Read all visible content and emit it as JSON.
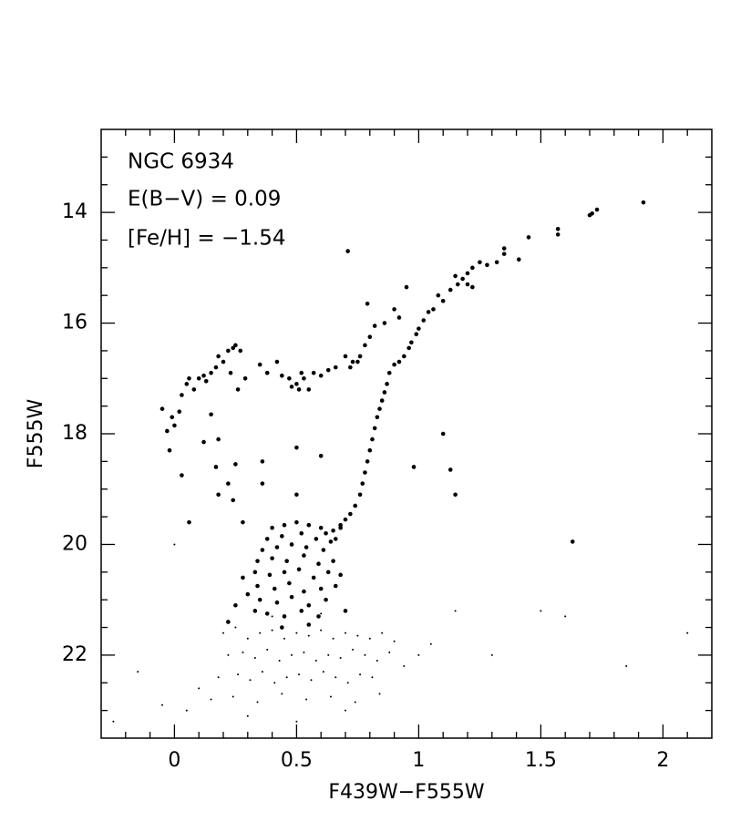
{
  "chart_data": {
    "type": "scatter",
    "annotations": [
      "NGC 6934",
      "E(B−V) = 0.09",
      "[Fe/H] = −1.54"
    ],
    "x_label": "F439W−F555W",
    "y_label": "F555W",
    "xlim": [
      -0.3,
      2.2
    ],
    "ylim": [
      23.5,
      12.5
    ],
    "xticks": [
      0,
      0.5,
      1,
      1.5,
      2
    ],
    "yticks": [
      14,
      16,
      18,
      20,
      22
    ],
    "xticks_minor": [
      -0.2,
      -0.1,
      0.1,
      0.2,
      0.3,
      0.4,
      0.6,
      0.7,
      0.8,
      0.9,
      1.1,
      1.2,
      1.3,
      1.4,
      1.6,
      1.7,
      1.8,
      1.9,
      2.1
    ],
    "yticks_minor": [
      13,
      13.5,
      14.5,
      15,
      15.5,
      16.5,
      17,
      17.5,
      18.5,
      19,
      19.5,
      20.5,
      21,
      21.5,
      22.5,
      23
    ],
    "grid": false,
    "series": [
      {
        "color": "#000000",
        "marker_size": 2.3,
        "x": [
          1.92,
          1.73,
          1.71,
          1.7,
          1.57,
          1.57,
          1.45,
          1.41,
          1.35,
          1.35,
          1.32,
          1.28,
          1.25,
          1.22,
          1.2,
          1.18,
          1.15,
          1.2,
          1.22,
          1.16,
          1.13,
          1.1,
          1.08,
          1.06,
          1.04,
          1.02,
          1.0,
          0.99,
          0.97,
          0.96,
          0.94,
          0.92,
          0.9,
          0.88,
          0.87,
          0.86,
          0.85,
          0.84,
          0.83,
          0.82,
          0.81,
          0.8,
          0.79,
          0.78,
          0.77,
          0.76,
          0.74,
          0.72,
          0.7,
          0.68,
          0.65,
          0.62,
          0.95,
          0.9,
          0.92,
          0.86,
          0.82,
          0.8,
          0.78,
          0.76,
          0.75,
          0.72,
          0.79,
          0.71,
          -0.05,
          -0.03,
          -0.02,
          -0.01,
          0.0,
          0.02,
          0.03,
          0.05,
          0.06,
          0.08,
          0.1,
          0.12,
          0.13,
          0.15,
          0.17,
          0.18,
          0.2,
          0.22,
          0.24,
          0.25,
          0.27,
          0.23,
          0.26,
          0.29,
          0.35,
          0.38,
          0.42,
          0.44,
          0.47,
          0.5,
          0.52,
          0.53,
          0.55,
          0.57,
          0.6,
          0.63,
          0.66,
          0.7,
          0.73,
          0.48,
          0.51,
          0.03,
          0.06,
          0.12,
          0.17,
          0.18,
          0.22,
          0.25,
          0.24,
          0.28,
          0.36,
          0.36,
          0.5,
          0.5,
          0.6,
          0.98,
          1.1,
          1.13,
          1.15,
          1.63,
          0.15,
          0.18,
          0.4,
          0.45,
          0.5,
          0.55,
          0.6,
          0.38,
          0.44,
          0.52,
          0.58,
          0.64,
          0.36,
          0.42,
          0.48,
          0.54,
          0.61,
          0.34,
          0.4,
          0.46,
          0.53,
          0.59,
          0.65,
          0.33,
          0.39,
          0.45,
          0.51,
          0.57,
          0.63,
          0.34,
          0.41,
          0.47,
          0.53,
          0.6,
          0.66,
          0.35,
          0.42,
          0.48,
          0.55,
          0.62,
          0.38,
          0.45,
          0.52,
          0.59,
          0.33,
          0.3,
          0.28,
          0.68,
          0.7,
          0.25,
          0.22,
          0.44,
          0.55,
          0.66,
          0.68
        ],
        "values": [
          13.82,
          13.95,
          14.02,
          14.05,
          14.3,
          14.4,
          14.45,
          14.85,
          14.65,
          14.75,
          14.9,
          14.95,
          14.9,
          15.0,
          15.1,
          15.2,
          15.15,
          15.3,
          15.35,
          15.3,
          15.4,
          15.6,
          15.5,
          15.75,
          15.8,
          15.95,
          16.1,
          16.2,
          16.35,
          16.45,
          16.6,
          16.7,
          16.75,
          16.9,
          17.1,
          17.25,
          17.4,
          17.55,
          17.7,
          17.9,
          18.1,
          18.3,
          18.5,
          18.7,
          18.9,
          19.1,
          19.3,
          19.45,
          19.55,
          19.65,
          19.75,
          19.8,
          15.35,
          15.75,
          15.9,
          16.0,
          16.05,
          16.25,
          16.4,
          16.6,
          16.7,
          16.8,
          15.65,
          14.7,
          17.55,
          17.95,
          18.3,
          17.7,
          17.85,
          17.6,
          17.3,
          17.1,
          17.0,
          17.2,
          17.0,
          16.95,
          17.05,
          16.9,
          16.8,
          16.6,
          16.7,
          16.5,
          16.45,
          16.4,
          16.5,
          16.9,
          17.2,
          17.0,
          16.75,
          16.9,
          16.7,
          16.95,
          17.0,
          17.1,
          16.9,
          17.0,
          17.2,
          16.9,
          16.95,
          16.85,
          16.8,
          16.6,
          16.7,
          17.15,
          17.2,
          18.75,
          19.6,
          18.15,
          18.6,
          19.1,
          18.9,
          18.55,
          19.2,
          19.6,
          18.5,
          18.9,
          18.25,
          19.1,
          18.4,
          18.6,
          18.0,
          18.65,
          19.1,
          19.95,
          17.65,
          18.1,
          19.7,
          19.65,
          19.6,
          19.65,
          19.7,
          19.9,
          19.85,
          19.8,
          19.9,
          19.95,
          20.1,
          20.05,
          20.0,
          20.05,
          20.1,
          20.3,
          20.25,
          20.3,
          20.2,
          20.35,
          20.3,
          20.5,
          20.55,
          20.5,
          20.45,
          20.6,
          20.5,
          20.75,
          20.8,
          20.7,
          20.85,
          20.8,
          20.75,
          21.0,
          21.05,
          20.95,
          21.1,
          21.0,
          21.25,
          21.3,
          21.2,
          21.3,
          21.2,
          20.9,
          20.6,
          20.55,
          21.2,
          21.1,
          21.4,
          21.5,
          21.45,
          19.9,
          19.7
        ]
      },
      {
        "color": "#000000",
        "marker_size": 1,
        "x": [
          0.2,
          0.25,
          0.3,
          0.35,
          0.4,
          0.45,
          0.5,
          0.55,
          0.6,
          0.65,
          0.7,
          0.75,
          0.8,
          0.85,
          0.9,
          0.22,
          0.28,
          0.33,
          0.38,
          0.43,
          0.48,
          0.53,
          0.58,
          0.63,
          0.68,
          0.73,
          0.78,
          0.83,
          0.88,
          0.18,
          0.26,
          0.31,
          0.36,
          0.41,
          0.46,
          0.51,
          0.56,
          0.61,
          0.66,
          0.71,
          0.76,
          0.81,
          0.15,
          0.24,
          0.34,
          0.44,
          0.54,
          0.64,
          0.74,
          0.84,
          0.94,
          1.0,
          1.05,
          0.1,
          0.05,
          -0.05,
          -0.15,
          -0.25,
          1.3,
          1.5,
          1.6,
          1.85,
          2.1,
          1.15,
          0.3,
          0.5,
          0.7,
          0.4,
          0.6,
          0.0
        ],
        "values": [
          21.6,
          21.5,
          21.7,
          21.6,
          21.55,
          21.7,
          21.6,
          21.65,
          21.55,
          21.7,
          21.6,
          21.65,
          21.7,
          21.6,
          21.75,
          22.0,
          21.95,
          22.05,
          21.9,
          22.1,
          22.0,
          21.95,
          22.1,
          22.0,
          22.05,
          21.9,
          22.0,
          22.1,
          21.95,
          22.4,
          22.35,
          22.45,
          22.3,
          22.5,
          22.4,
          22.35,
          22.45,
          22.3,
          22.4,
          22.5,
          22.35,
          22.4,
          22.8,
          22.75,
          22.85,
          22.7,
          22.8,
          22.75,
          22.85,
          22.7,
          22.2,
          22.0,
          21.8,
          22.6,
          23.0,
          22.9,
          22.3,
          23.2,
          22.0,
          21.2,
          21.3,
          22.2,
          21.6,
          21.2,
          23.1,
          23.2,
          23.0,
          21.3,
          21.25,
          20.0
        ]
      }
    ]
  }
}
